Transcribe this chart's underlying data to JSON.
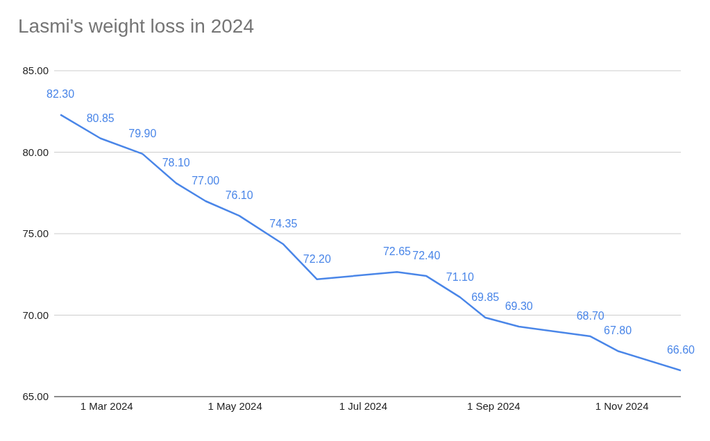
{
  "chart_data": {
    "type": "line",
    "title": "Lasmi's weight loss in 2024",
    "x": [
      "2024-02-08",
      "2024-02-27",
      "2024-03-18",
      "2024-04-03",
      "2024-04-17",
      "2024-05-03",
      "2024-05-24",
      "2024-06-09",
      "2024-07-17",
      "2024-07-31",
      "2024-08-16",
      "2024-08-28",
      "2024-09-13",
      "2024-10-17",
      "2024-10-30",
      "2024-11-29"
    ],
    "series": [
      {
        "color": "#4a86e8",
        "values": [
          82.3,
          80.85,
          79.9,
          78.1,
          77.0,
          76.1,
          74.35,
          72.2,
          72.65,
          72.4,
          71.1,
          69.85,
          69.3,
          68.7,
          67.8,
          66.6
        ],
        "value_labels": [
          "82.30",
          "80.85",
          "79.90",
          "78.10",
          "77.00",
          "76.10",
          "74.35",
          "72.20",
          "72.65",
          "72.40",
          "71.10",
          "69.85",
          "69.30",
          "68.70",
          "67.80",
          "66.60"
        ]
      }
    ],
    "xlim": [
      "2024-02-05",
      "2024-11-29"
    ],
    "xticks": [
      {
        "value": "2024-03-01",
        "label": "1 Mar 2024"
      },
      {
        "value": "2024-05-01",
        "label": "1 May 2024"
      },
      {
        "value": "2024-07-01",
        "label": "1 Jul 2024"
      },
      {
        "value": "2024-09-01",
        "label": "1 Sep 2024"
      },
      {
        "value": "2024-11-01",
        "label": "1 Nov 2024"
      }
    ],
    "ylim": [
      65,
      85
    ],
    "yticks": [
      {
        "value": 65,
        "label": "65.00"
      },
      {
        "value": 70,
        "label": "70.00"
      },
      {
        "value": 75,
        "label": "75.00"
      },
      {
        "value": 80,
        "label": "80.00"
      },
      {
        "value": 85,
        "label": "85.00"
      }
    ],
    "grid": "y",
    "legend": false,
    "marker": "none",
    "line_style": "solid"
  }
}
